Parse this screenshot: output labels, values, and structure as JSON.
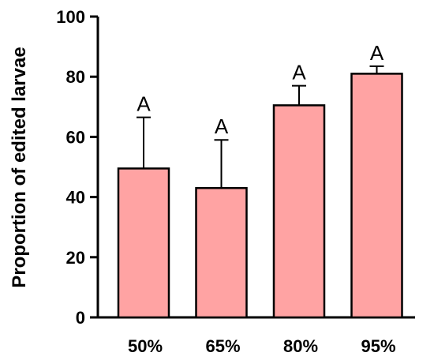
{
  "chart_data": {
    "type": "bar",
    "categories": [
      "50%",
      "65%",
      "80%",
      "95%"
    ],
    "values": [
      49.5,
      43,
      70.5,
      81
    ],
    "error_upper": [
      66.5,
      59,
      77,
      83.5
    ],
    "significance": [
      "A",
      "A",
      "A",
      "A"
    ],
    "ylabel": "Proportion of edited larvae",
    "xlabel": "",
    "ylim": [
      0,
      100
    ],
    "yticks": [
      0,
      20,
      40,
      60,
      80,
      100
    ],
    "grid": false,
    "colors": {
      "bar_fill": "#FFA3A3",
      "stroke": "#000000"
    }
  }
}
